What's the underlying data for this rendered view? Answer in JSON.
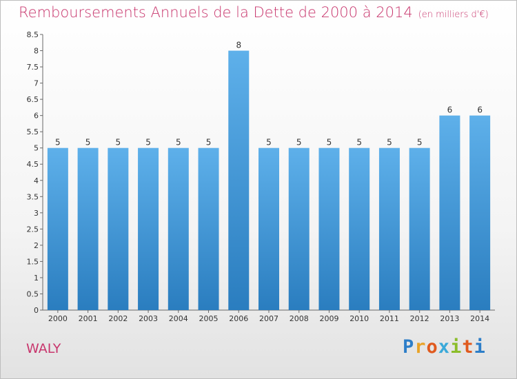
{
  "chart_data": {
    "type": "bar",
    "title": "Remboursements Annuels de la Dette de 2000 à 2014",
    "subtitle": "(en milliers d'€)",
    "categories": [
      "2000",
      "2001",
      "2002",
      "2003",
      "2004",
      "2005",
      "2006",
      "2007",
      "2008",
      "2009",
      "2010",
      "2011",
      "2012",
      "2013",
      "2014"
    ],
    "values": [
      5,
      5,
      5,
      5,
      5,
      5,
      8,
      5,
      5,
      5,
      5,
      5,
      5,
      6,
      6
    ],
    "ylim": [
      0,
      8.5
    ],
    "yticks": [
      "0",
      "0.5",
      "1",
      "1.5",
      "2",
      "2.5",
      "3",
      "3.5",
      "4",
      "4.5",
      "5",
      "5.5",
      "6",
      "6.5",
      "7",
      "7.5",
      "8",
      "8.5"
    ],
    "xlabel": "",
    "ylabel": "",
    "grid": false,
    "bar_color_top": "#5eb0ea",
    "bar_color_bottom": "#2a7dbf"
  },
  "commune": "WALY",
  "logo": {
    "letters": [
      "P",
      "r",
      "o",
      "x",
      "i",
      "t",
      "i"
    ],
    "colors": [
      "#2d7ec8",
      "#e9a327",
      "#e05a1e",
      "#3aa9d9",
      "#8bbd2a",
      "#e05a1e",
      "#2d7ec8"
    ]
  }
}
